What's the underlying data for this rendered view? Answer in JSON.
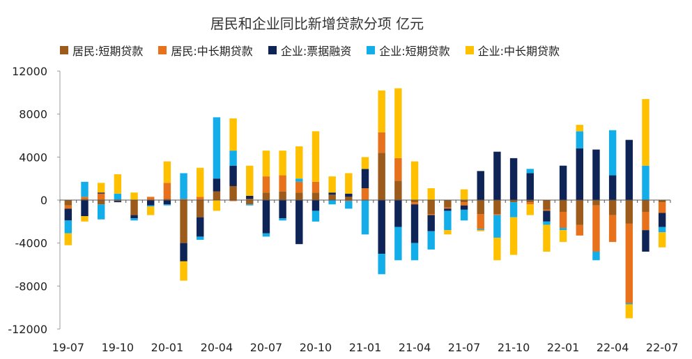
{
  "chart_data": {
    "type": "bar",
    "stacked": true,
    "title": "居民和企业同比新增贷款分项 亿元",
    "xlabel": "",
    "ylabel": "",
    "ylim": [
      -12000,
      12000
    ],
    "yticks": [
      12000,
      8000,
      4000,
      0,
      -4000,
      -8000,
      -12000
    ],
    "ytick_labels": [
      "12000",
      "8000",
      "4000",
      "0",
      "-4000",
      "-8000",
      "-12000"
    ],
    "xtick_labels": [
      "19-07",
      "19-10",
      "20-01",
      "20-04",
      "20-07",
      "20-10",
      "21-01",
      "21-04",
      "21-07",
      "21-10",
      "22-01",
      "22-04",
      "22-07"
    ],
    "categories": [
      "19-07",
      "19-08",
      "19-09",
      "19-10",
      "19-11",
      "19-12",
      "20-01",
      "20-02",
      "20-03",
      "20-04",
      "20-05",
      "20-06",
      "20-07",
      "20-08",
      "20-09",
      "20-10",
      "20-11",
      "20-12",
      "21-01",
      "21-02",
      "21-03",
      "21-04",
      "21-05",
      "21-06",
      "21-07",
      "21-08",
      "21-09",
      "21-10",
      "21-11",
      "21-12",
      "22-01",
      "22-02",
      "22-03",
      "22-04",
      "22-05",
      "22-06",
      "22-07"
    ],
    "legend_position": "top",
    "grid": false,
    "series": [
      {
        "name": "居民:短期贷款",
        "color": "#9C5B1B",
        "values": [
          -500,
          100,
          -400,
          -100,
          -1400,
          0,
          100,
          -4000,
          -1600,
          800,
          1300,
          -400,
          700,
          800,
          700,
          700,
          500,
          300,
          0,
          4400,
          1800,
          -200,
          -1300,
          -700,
          -200,
          -1300,
          -1300,
          -200,
          -200,
          -900,
          -1100,
          -2300,
          -500,
          -1400,
          -2200,
          -1100,
          -200
        ]
      },
      {
        "name": "居民:中长期贷款",
        "color": "#E8711B",
        "values": [
          -300,
          200,
          600,
          0,
          0,
          300,
          1500,
          100,
          300,
          0,
          -100,
          100,
          1500,
          1500,
          1000,
          1000,
          0,
          -100,
          1100,
          1900,
          2100,
          -200,
          -100,
          -100,
          -300,
          -1400,
          -100,
          0,
          -200,
          -100,
          -1500,
          -1000,
          -4300,
          -2500,
          -7400,
          -1700,
          -1000
        ]
      },
      {
        "name": "企业:票据融资",
        "color": "#0E2356",
        "values": [
          -1100,
          -1500,
          100,
          -100,
          -300,
          -500,
          -400,
          -1700,
          -1800,
          1200,
          1900,
          300,
          -3100,
          -1700,
          -4100,
          -1000,
          200,
          300,
          1800,
          -5000,
          -2500,
          -3600,
          -1500,
          -200,
          -400,
          2700,
          4500,
          3900,
          2500,
          -1000,
          3200,
          4800,
          4700,
          2300,
          5600,
          -2000,
          -1300
        ]
      },
      {
        "name": "企业:短期贷款",
        "color": "#13AEEA",
        "values": [
          -1200,
          1400,
          -1400,
          600,
          -200,
          -100,
          -100,
          2400,
          -300,
          5700,
          1400,
          -100,
          -300,
          -200,
          300,
          -1000,
          -400,
          -700,
          -3200,
          -1900,
          -3100,
          -1600,
          -1700,
          -1800,
          -1000,
          -100,
          -2100,
          -1400,
          400,
          -300,
          -200,
          1600,
          -800,
          4200,
          -100,
          3200,
          -500
        ]
      },
      {
        "name": "企业:中长期贷款",
        "color": "#FFC000",
        "values": [
          -1100,
          -500,
          900,
          1800,
          700,
          -800,
          2000,
          -1800,
          2700,
          -1000,
          3000,
          2800,
          2400,
          2300,
          3000,
          4700,
          1500,
          1900,
          1100,
          3900,
          6500,
          3600,
          1100,
          -400,
          1000,
          -100,
          -2100,
          -3500,
          -1000,
          -2500,
          -1100,
          600,
          0,
          0,
          -1300,
          6200,
          -1400
        ]
      }
    ]
  }
}
